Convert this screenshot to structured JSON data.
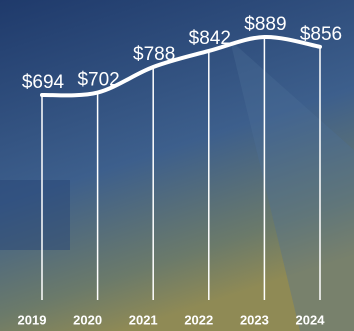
{
  "chart_data": {
    "type": "line",
    "categories": [
      "2019",
      "2020",
      "2021",
      "2022",
      "2023",
      "2024"
    ],
    "values": [
      694,
      702,
      788,
      842,
      889,
      856
    ],
    "value_labels": [
      "$694",
      "$702",
      "$788",
      "$842",
      "$889",
      "$856"
    ],
    "color": "#ffffff"
  }
}
